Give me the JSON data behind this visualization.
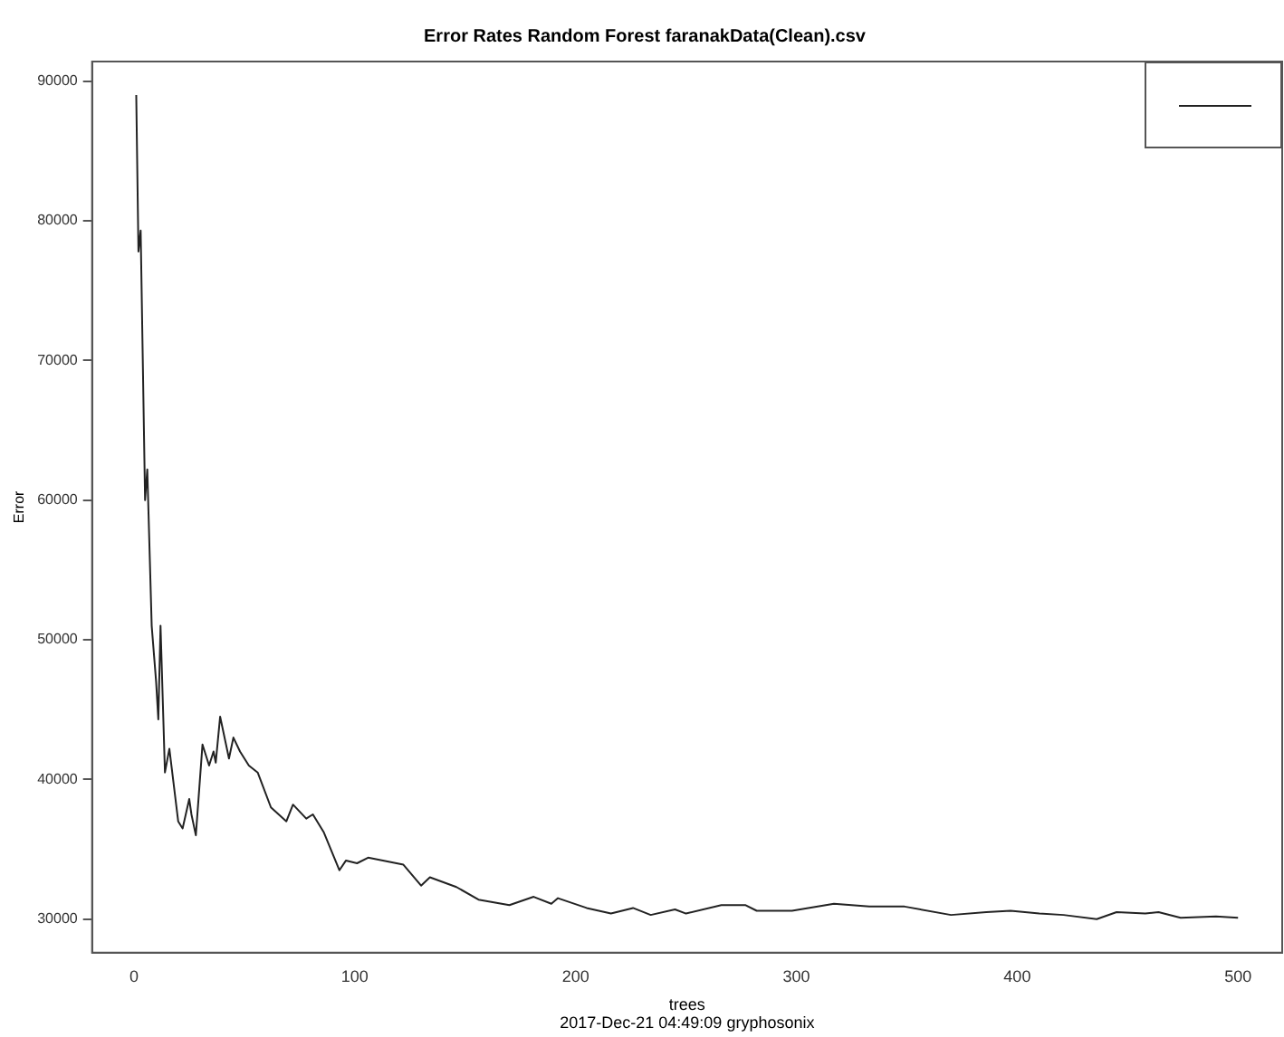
{
  "chart_data": {
    "type": "line",
    "title": "Error Rates Random Forest faranakData(Clean).csv",
    "xlabel": "trees",
    "ylabel": "Error",
    "annotations": [
      "2017-Dec-21 04:49:09 gryphosonix"
    ],
    "xlim": [
      -19,
      520
    ],
    "ylim": [
      27600,
      91400
    ],
    "xticks": [
      0,
      100,
      200,
      300,
      400,
      500
    ],
    "yticks": [
      30000,
      40000,
      50000,
      60000,
      70000,
      80000,
      90000
    ],
    "grid": false,
    "marker": "none",
    "line_style": "solid",
    "series": [
      {
        "color": "#222222",
        "x": [
          1,
          2,
          3,
          5,
          6,
          8,
          10,
          11,
          12,
          14,
          16,
          20,
          22,
          25,
          26,
          28,
          31,
          34,
          36,
          37,
          39,
          43,
          45,
          48,
          52,
          56,
          62,
          69,
          72,
          78,
          81,
          86,
          93,
          96,
          101,
          106,
          122,
          130,
          134,
          146,
          156,
          170,
          181,
          189,
          192,
          205,
          216,
          226,
          234,
          245,
          250,
          266,
          277,
          282,
          298,
          317,
          333,
          349,
          370,
          386,
          397,
          410,
          421,
          436,
          445,
          458,
          464,
          474,
          490,
          500
        ],
        "values": [
          89000,
          77800,
          79300,
          60000,
          62200,
          51000,
          47000,
          44300,
          51000,
          40500,
          42200,
          37000,
          36500,
          38600,
          37500,
          36000,
          42500,
          41000,
          42000,
          41200,
          44500,
          41500,
          43000,
          42000,
          41000,
          40500,
          38000,
          37000,
          38200,
          37200,
          37500,
          36200,
          33500,
          34200,
          34000,
          34400,
          33900,
          32400,
          33000,
          32300,
          31400,
          31000,
          31600,
          31100,
          31500,
          30800,
          30400,
          30800,
          30300,
          30700,
          30400,
          31000,
          31000,
          30600,
          30600,
          31100,
          30900,
          30900,
          30300,
          30500,
          30600,
          30400,
          30300,
          30000,
          30500,
          30400,
          30500,
          30100,
          30200,
          30100
        ]
      }
    ]
  }
}
